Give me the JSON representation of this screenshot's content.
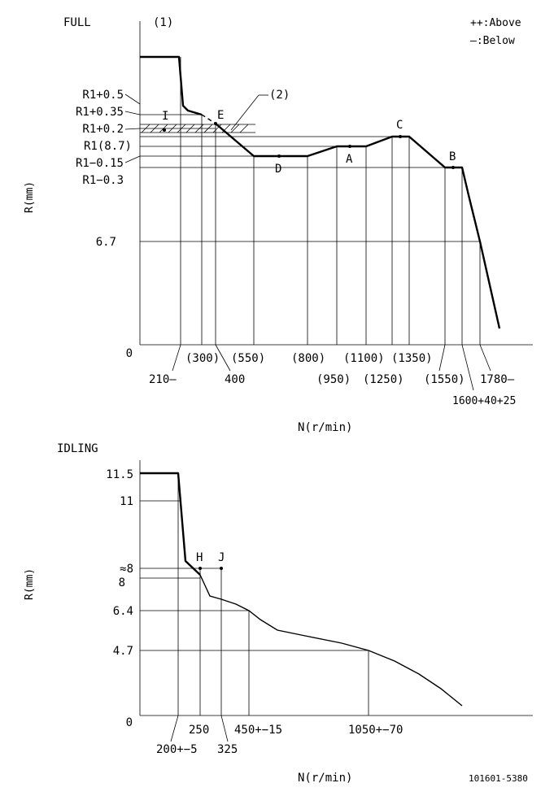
{
  "full": {
    "title": "FULL",
    "note1": "(1)",
    "note2": "(2)",
    "legend_above": "++:Above",
    "legend_below": "—:Below",
    "y_axis_label": "R(mm)",
    "x_axis_label": "N(r/min)",
    "y_labels": {
      "r1_plus_05": "R1+0.5",
      "r1_plus_035": "R1+0.35",
      "r1_plus_02": "R1+0.2",
      "r1": "R1(8.7)",
      "r1_minus_015": "R1−0.15",
      "r1_minus_03": "R1−0.3",
      "v67": "6.7",
      "zero": "0"
    },
    "x_labels": {
      "n210": "210—",
      "n300": "(300)",
      "n400": "400",
      "n550": "(550)",
      "n800": "(800)",
      "n950": "(950)",
      "n1100": "(1100)",
      "n1250": "(1250)",
      "n1350": "(1350)",
      "n1550": "(1550)",
      "n1600": "1600+40+25",
      "n1780": "1780—"
    },
    "points": {
      "I": "I",
      "E": "E",
      "D": "D",
      "A": "A",
      "C": "C",
      "B": "B"
    }
  },
  "idling": {
    "title": "IDLING",
    "y_axis_label": "R(mm)",
    "x_axis_label": "N(r/min)",
    "y_labels": {
      "v115": "11.5",
      "v11": "11",
      "approx8": "≈8",
      "v8": "8",
      "v64": "6.4",
      "v47": "4.7",
      "zero": "0"
    },
    "x_labels": {
      "n200": "200+−5",
      "n250": "250",
      "n325": "325",
      "n450": "450+−15",
      "n1050": "1050+−70"
    },
    "points": {
      "H": "H",
      "J": "J"
    }
  },
  "drawing_number": "101601-5380"
}
